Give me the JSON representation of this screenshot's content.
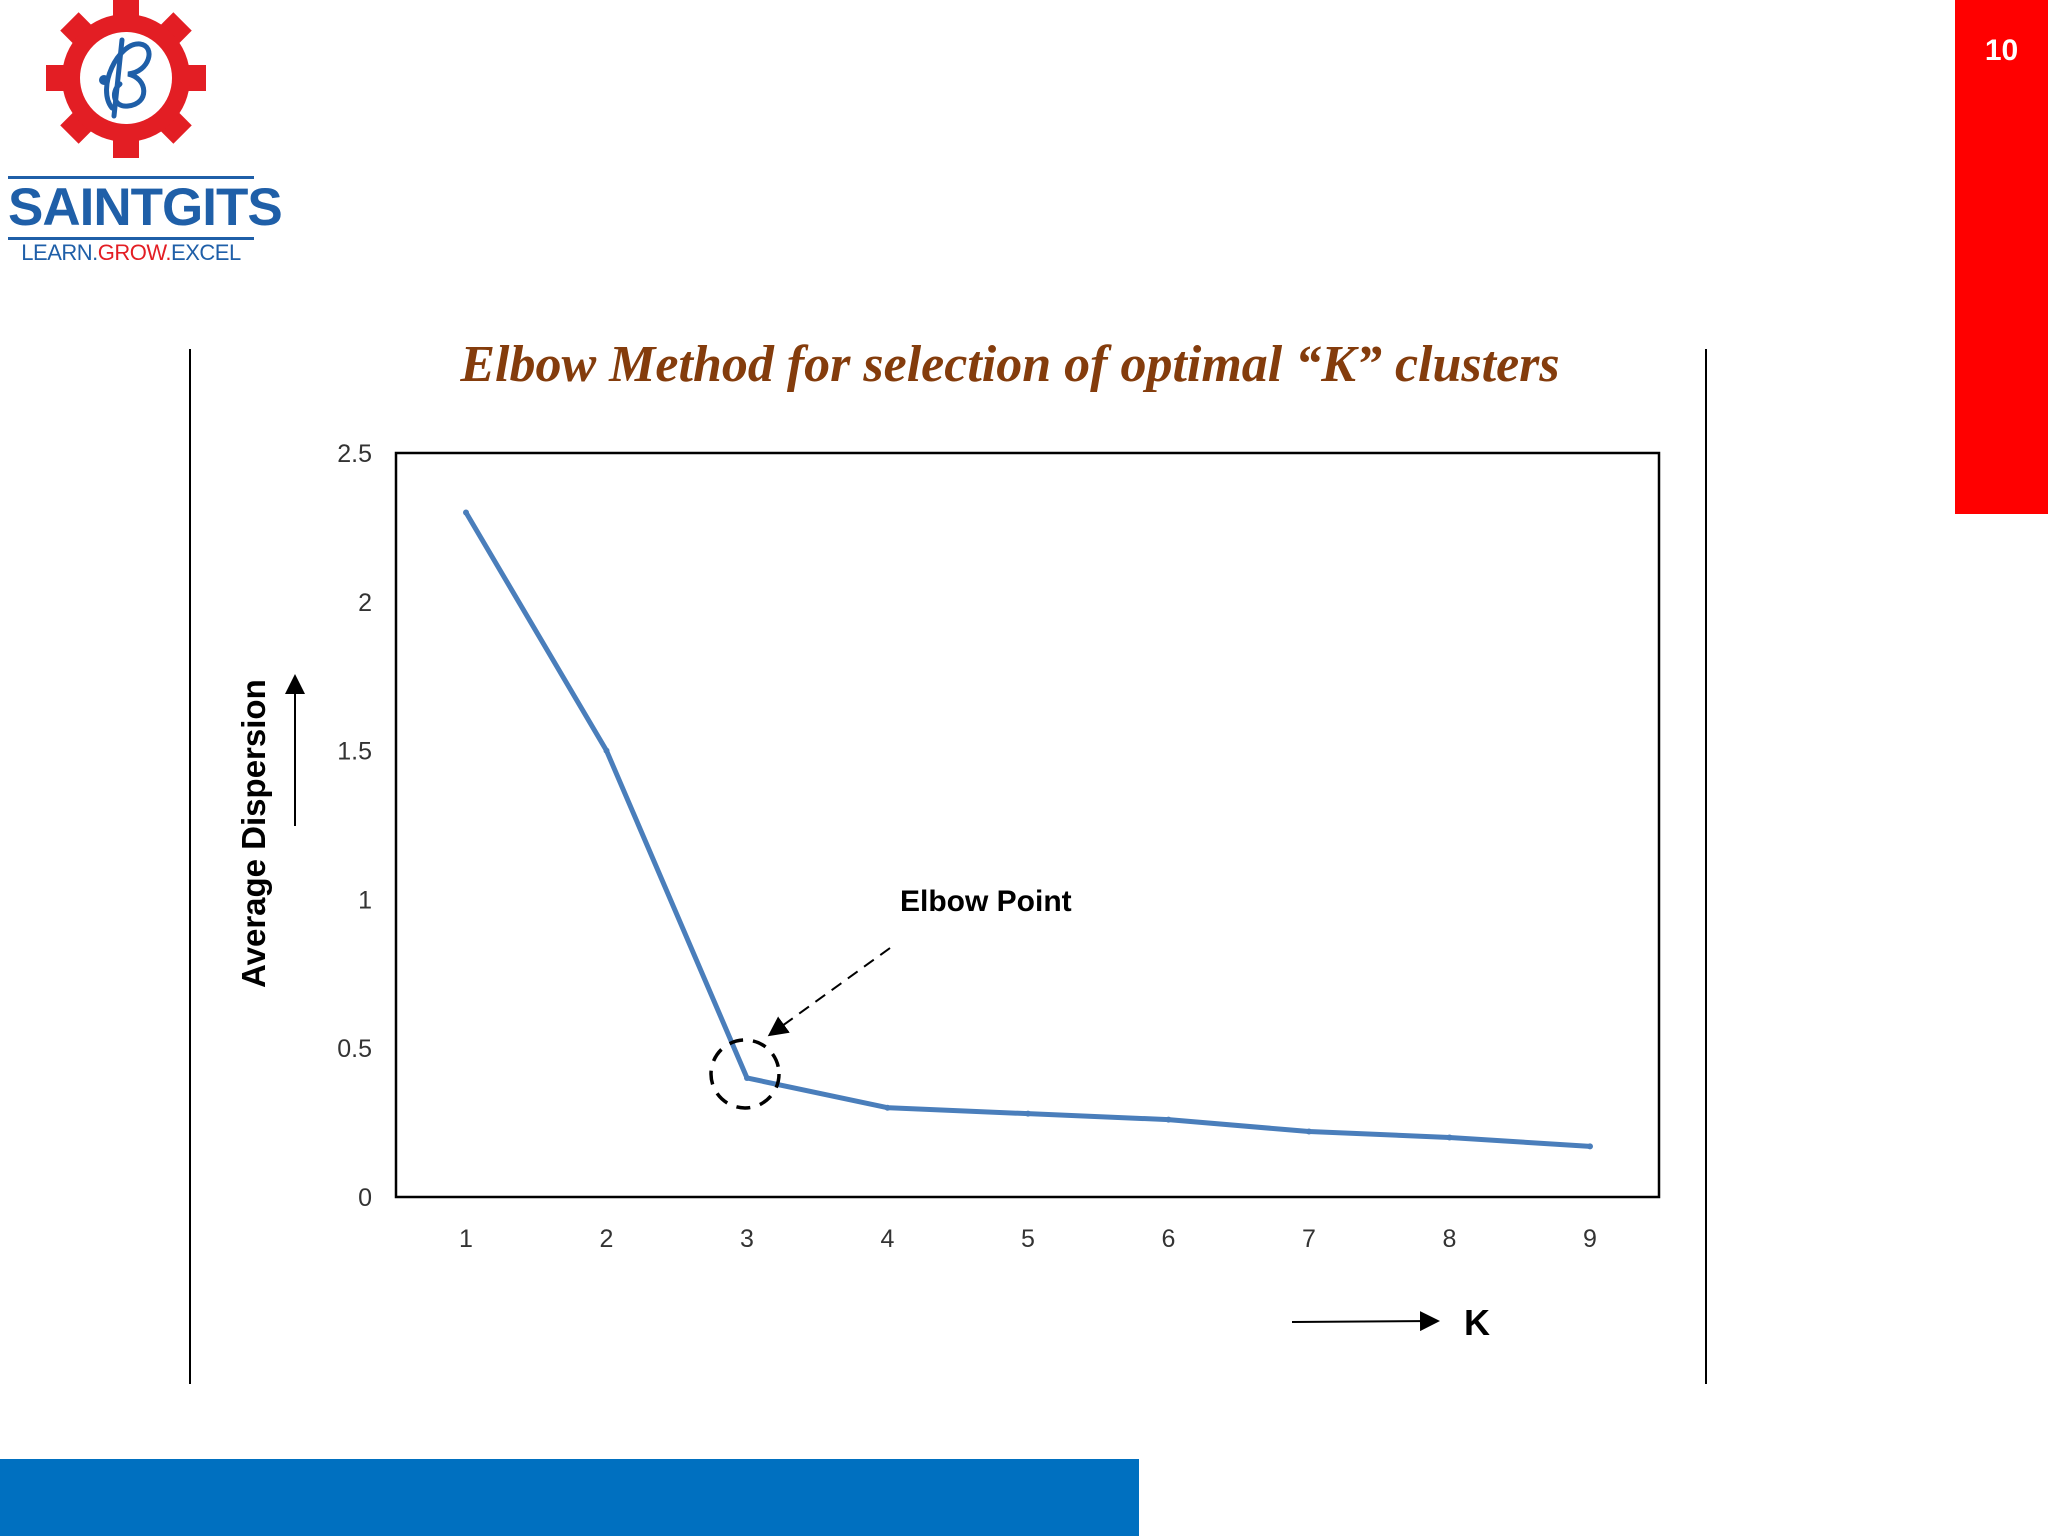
{
  "slide": {
    "number": "10",
    "accent_color": "#ff0000",
    "bottom_bar_color": "#0070c0"
  },
  "logo": {
    "name": "SAINTGITS",
    "tagline_parts": [
      "LEARN.",
      "GROW.",
      "EXCEL"
    ],
    "gear_color": "#e31e24",
    "text_color": "#1f5fa8"
  },
  "chart_data": {
    "type": "line",
    "title": "Elbow Method for selection of optimal “K” clusters",
    "xlabel": "K",
    "ylabel": "Average Dispersion",
    "categories": [
      "1",
      "2",
      "3",
      "4",
      "5",
      "6",
      "7",
      "8",
      "9"
    ],
    "series": [
      {
        "values": [
          2.3,
          1.5,
          0.4,
          0.3,
          0.28,
          0.26,
          0.22,
          0.2,
          0.17
        ],
        "color": "#4a7ebb"
      }
    ],
    "y_ticks": [
      "0",
      "0.5",
      "1",
      "1.5",
      "2",
      "2.5"
    ],
    "ylim": [
      0,
      2.5
    ],
    "grid": false,
    "annotation": {
      "text": "Elbow Point",
      "at_category": "3",
      "at_value": 0.4
    }
  }
}
